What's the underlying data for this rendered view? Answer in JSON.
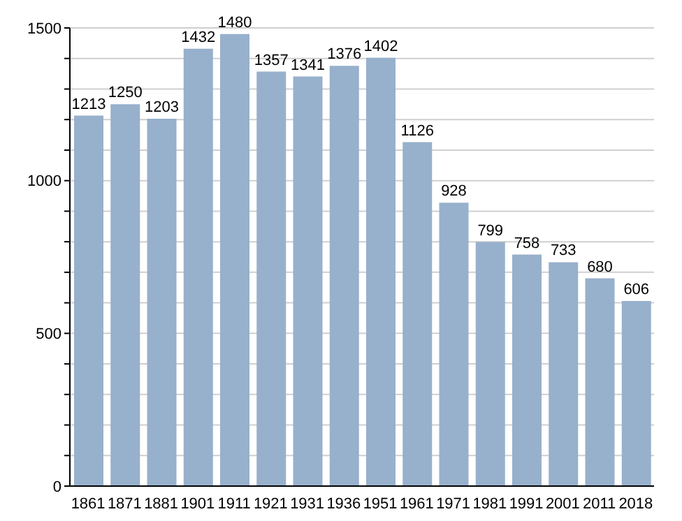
{
  "chart_data": {
    "type": "bar",
    "categories": [
      "1861",
      "1871",
      "1881",
      "1901",
      "1911",
      "1921",
      "1931",
      "1936",
      "1951",
      "1961",
      "1971",
      "1981",
      "1991",
      "2001",
      "2011",
      "2018"
    ],
    "values": [
      1213,
      1250,
      1203,
      1432,
      1480,
      1357,
      1341,
      1376,
      1402,
      1126,
      928,
      799,
      758,
      733,
      680,
      606
    ],
    "color": "#97b0cc",
    "ylim": [
      0,
      1500
    ],
    "yticks": [
      0,
      {
        "value": 100,
        "label": null
      },
      {
        "value": 200,
        "label": null
      },
      {
        "value": 300,
        "label": null
      },
      {
        "value": 400,
        "label": null
      },
      500,
      {
        "value": 600,
        "label": null
      },
      {
        "value": 700,
        "label": null
      },
      {
        "value": 800,
        "label": null
      },
      {
        "value": 900,
        "label": null
      },
      1000,
      {
        "value": 1100,
        "label": null
      },
      {
        "value": 1200,
        "label": null
      },
      {
        "value": 1300,
        "label": null
      },
      {
        "value": 1400,
        "label": null
      },
      1500
    ],
    "grid": "y",
    "data_labels": true
  }
}
